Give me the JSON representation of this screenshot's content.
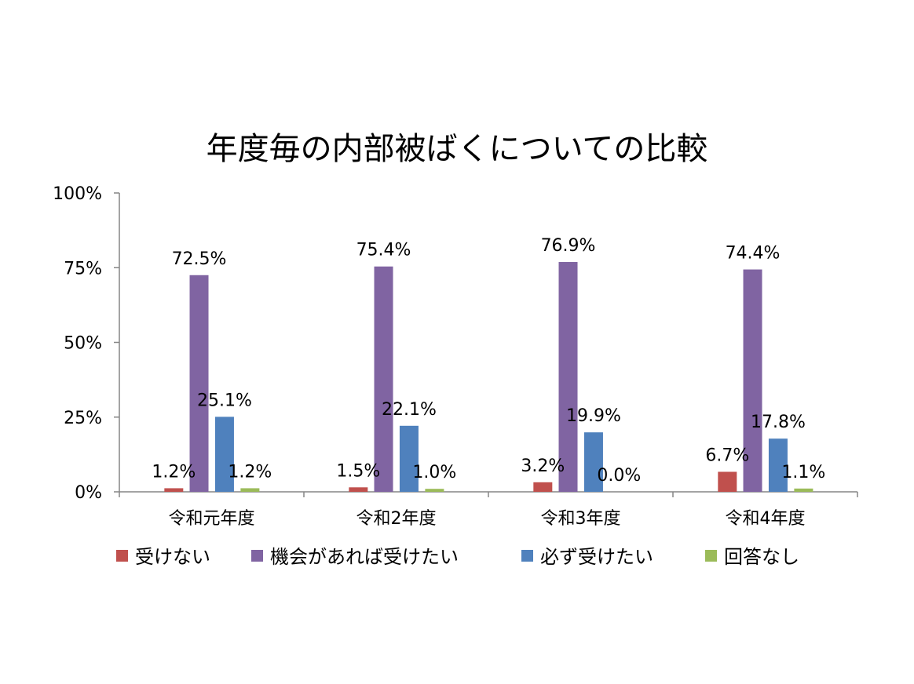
{
  "chart_data": {
    "type": "bar",
    "title": "年度毎の内部被ばくについての比較",
    "categories": [
      "令和元年度",
      "令和2年度",
      "令和3年度",
      "令和4年度"
    ],
    "series": [
      {
        "name": "受けない",
        "color": "#C0504D",
        "values": [
          1.2,
          1.5,
          3.2,
          6.7
        ],
        "labels": [
          "1.2%",
          "1.5%",
          "3.2%",
          "6.7%"
        ]
      },
      {
        "name": "機会があれば受けたい",
        "color": "#8064A2",
        "values": [
          72.5,
          75.4,
          76.9,
          74.4
        ],
        "labels": [
          "72.5%",
          "75.4%",
          "76.9%",
          "74.4%"
        ]
      },
      {
        "name": "必ず受けたい",
        "color": "#4F81BD",
        "values": [
          25.1,
          22.1,
          19.9,
          17.8
        ],
        "labels": [
          "25.1%",
          "22.1%",
          "19.9%",
          "17.8%"
        ]
      },
      {
        "name": "回答なし",
        "color": "#9BBB59",
        "values": [
          1.2,
          1.0,
          0.0,
          1.1
        ],
        "labels": [
          "1.2%",
          "1.0%",
          "0.0%",
          "1.1%"
        ]
      }
    ],
    "ylim": [
      0,
      100
    ],
    "yticks": [
      0,
      25,
      50,
      75,
      100
    ],
    "ytick_labels": [
      "0%",
      "25%",
      "50%",
      "75%",
      "100%"
    ],
    "grid": false,
    "legend_position": "bottom"
  }
}
